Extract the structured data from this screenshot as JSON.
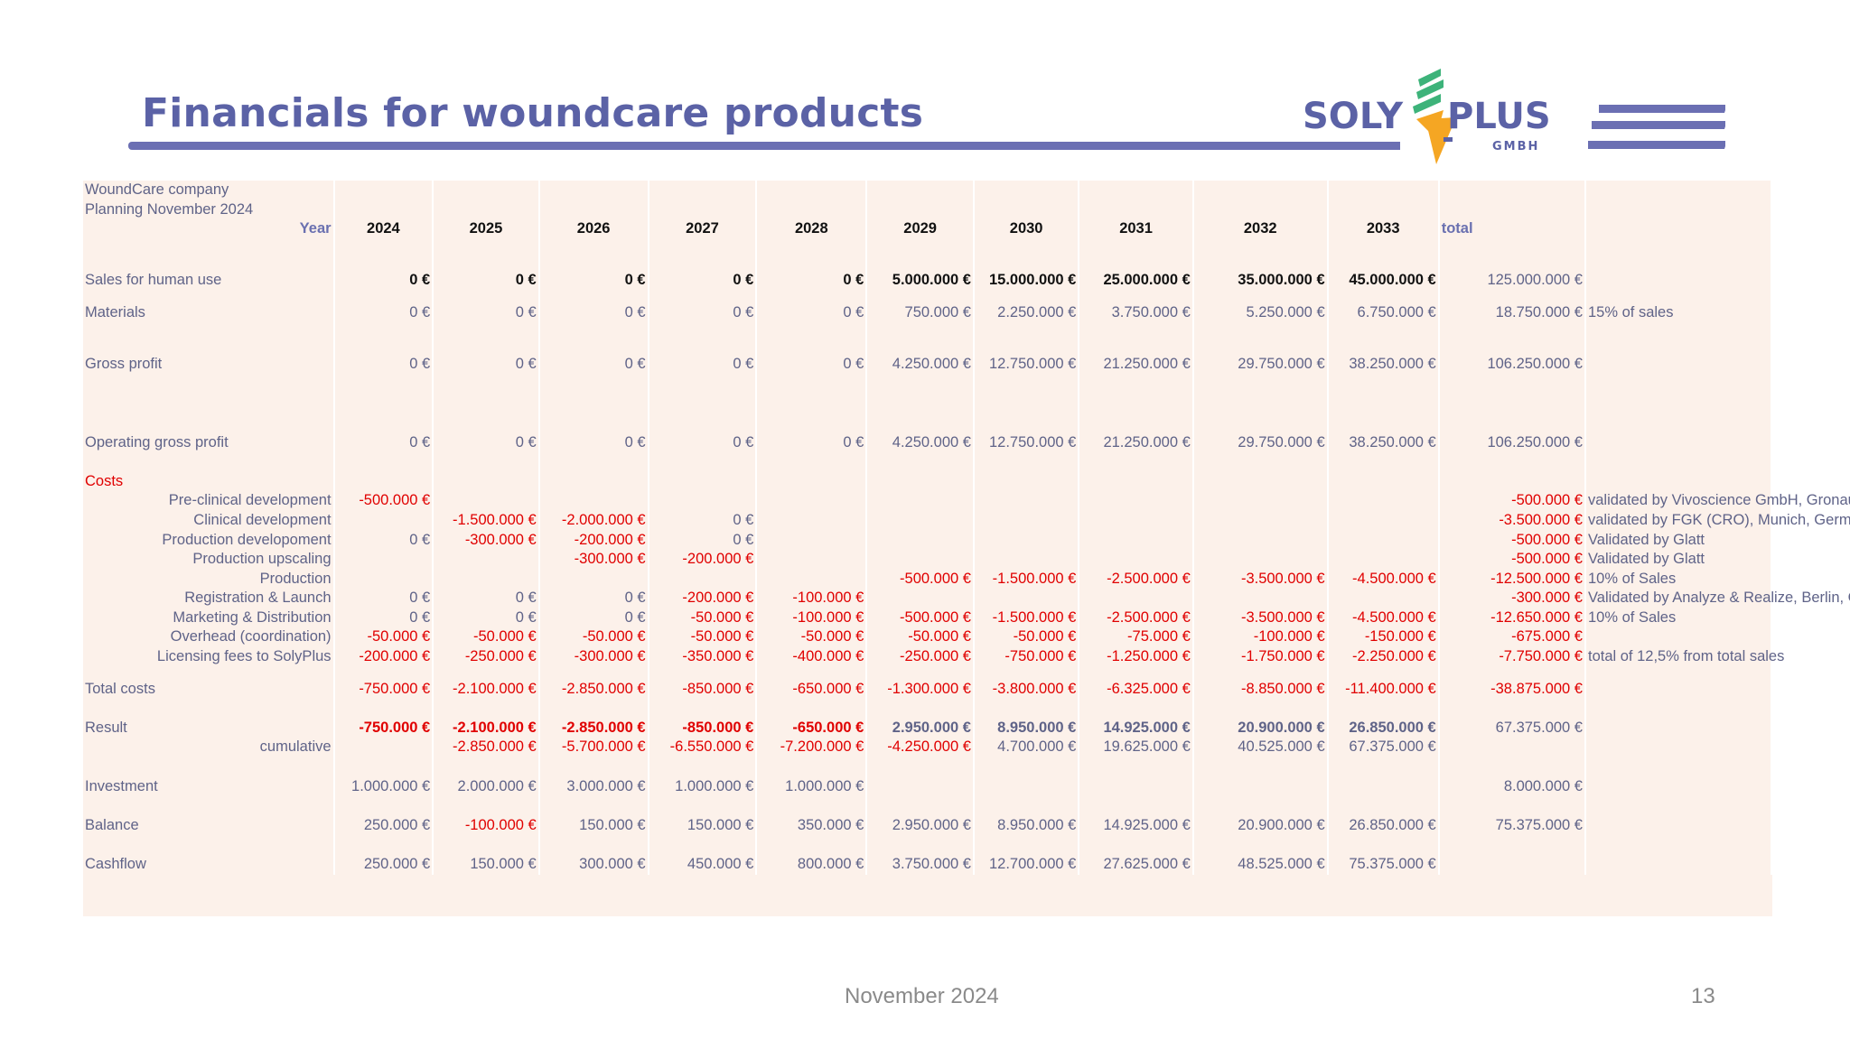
{
  "slide": {
    "title": "Financials for woundcare products",
    "footer_date": "November 2024",
    "page_number": "13"
  },
  "logo": {
    "left_text": "SOLY",
    "right_text": "PLUS",
    "sub_text": "GMBH",
    "colors": {
      "text": "#5b62a6",
      "green": "#3db37a",
      "orange": "#f5a623",
      "stripes": "#6b6fb3"
    }
  },
  "sheet": {
    "company": "WoundCare company",
    "planning": "Planning November 2024",
    "year_label": "Year",
    "years": [
      "2024",
      "2025",
      "2026",
      "2027",
      "2028",
      "2029",
      "2030",
      "2031",
      "2032",
      "2033"
    ],
    "total_label": "total",
    "rows": {
      "sales": {
        "label": "Sales for human use",
        "values": [
          "0 €",
          "0 €",
          "0 €",
          "0 €",
          "0 €",
          "5.000.000 €",
          "15.000.000 €",
          "25.000.000 €",
          "35.000.000 €",
          "45.000.000 €"
        ],
        "total": "125.000.000 €"
      },
      "materials": {
        "label": "Materials",
        "values": [
          "0 €",
          "0 €",
          "0 €",
          "0 €",
          "0 €",
          "750.000 €",
          "2.250.000 €",
          "3.750.000 €",
          "5.250.000 €",
          "6.750.000 €"
        ],
        "total": "18.750.000 €",
        "note": "15% of sales"
      },
      "gross": {
        "label": "Gross profit",
        "values": [
          "0 €",
          "0 €",
          "0 €",
          "0 €",
          "0 €",
          "4.250.000 €",
          "12.750.000 €",
          "21.250.000 €",
          "29.750.000 €",
          "38.250.000 €"
        ],
        "total": "106.250.000 €"
      },
      "opgross": {
        "label": "Operating gross profit",
        "values": [
          "0 €",
          "0 €",
          "0 €",
          "0 €",
          "0 €",
          "4.250.000 €",
          "12.750.000 €",
          "21.250.000 €",
          "29.750.000 €",
          "38.250.000 €"
        ],
        "total": "106.250.000 €"
      },
      "costs_label": "Costs",
      "preclin": {
        "label": "Pre-clinical development",
        "values": [
          "-500.000 €",
          "",
          "",
          "",
          "",
          "",
          "",
          "",
          "",
          ""
        ],
        "total": "-500.000 €",
        "note": "validated by Vivoscience GmbH, Gronau, Germany"
      },
      "clin": {
        "label": "Clinical development",
        "values": [
          "",
          "-1.500.000 €",
          "-2.000.000 €",
          "0 €",
          "",
          "",
          "",
          "",
          "",
          ""
        ],
        "total": "-3.500.000 €",
        "note": "validated by FGK (CRO), Munich, Germany"
      },
      "proddev": {
        "label": "Production developoment",
        "values": [
          "0 €",
          "-300.000 €",
          "-200.000 €",
          "0 €",
          "",
          "",
          "",
          "",
          "",
          ""
        ],
        "total": "-500.000 €",
        "note": "Validated  by Glatt"
      },
      "produp": {
        "label": "Production upscaling",
        "values": [
          "",
          "",
          "-300.000 €",
          "-200.000 €",
          "",
          "",
          "",
          "",
          "",
          ""
        ],
        "total": "-500.000 €",
        "note": "Validated  by Glatt"
      },
      "prod": {
        "label": "Production",
        "values": [
          "",
          "",
          "",
          "",
          "",
          "-500.000 €",
          "-1.500.000 €",
          "-2.500.000 €",
          "-3.500.000 €",
          "-4.500.000 €"
        ],
        "total": "-12.500.000 €",
        "note": "10% of Sales"
      },
      "reg": {
        "label": "Registration & Launch",
        "values": [
          "0 €",
          "0 €",
          "0 €",
          "-200.000 €",
          "-100.000 €",
          "",
          "",
          "",
          "",
          ""
        ],
        "total": "-300.000 €",
        "note": "Validated by Analyze & Realize, Berlin, Germany"
      },
      "mkt": {
        "label": "Marketing & Distribution",
        "values": [
          "0 €",
          "0 €",
          "0 €",
          "-50.000 €",
          "-100.000 €",
          "-500.000 €",
          "-1.500.000 €",
          "-2.500.000 €",
          "-3.500.000 €",
          "-4.500.000 €"
        ],
        "total": "-12.650.000 €",
        "note": "10% of Sales"
      },
      "overhead": {
        "label": "Overhead (coordination)",
        "values": [
          "-50.000 €",
          "-50.000 €",
          "-50.000 €",
          "-50.000 €",
          "-50.000 €",
          "-50.000 €",
          "-50.000 €",
          "-75.000 €",
          "-100.000 €",
          "-150.000 €"
        ],
        "total": "-675.000 €"
      },
      "lic": {
        "label": "Licensing fees to SolyPlus",
        "values": [
          "-200.000 €",
          "-250.000 €",
          "-300.000 €",
          "-350.000 €",
          "-400.000 €",
          "-250.000 €",
          "-750.000 €",
          "-1.250.000 €",
          "-1.750.000 €",
          "-2.250.000 €"
        ],
        "total": "-7.750.000 €",
        "note": "total of 12,5% from total sales"
      },
      "totalcosts": {
        "label": "Total costs",
        "values": [
          "-750.000 €",
          "-2.100.000 €",
          "-2.850.000 €",
          "-850.000 €",
          "-650.000 €",
          "-1.300.000 €",
          "-3.800.000 €",
          "-6.325.000 €",
          "-8.850.000 €",
          "-11.400.000 €"
        ],
        "total": "-38.875.000 €"
      },
      "result": {
        "label": "Result",
        "values": [
          "-750.000 €",
          "-2.100.000 €",
          "-2.850.000 €",
          "-850.000 €",
          "-650.000 €",
          "2.950.000 €",
          "8.950.000 €",
          "14.925.000 €",
          "20.900.000 €",
          "26.850.000 €"
        ],
        "total": "67.375.000 €"
      },
      "cumulative": {
        "label": "cumulative",
        "values": [
          "",
          "-2.850.000 €",
          "-5.700.000 €",
          "-6.550.000 €",
          "-7.200.000 €",
          "-4.250.000 €",
          "4.700.000 €",
          "19.625.000 €",
          "40.525.000 €",
          "67.375.000 €"
        ]
      },
      "investment": {
        "label": "Investment",
        "values": [
          "1.000.000 €",
          "2.000.000 €",
          "3.000.000 €",
          "1.000.000 €",
          "1.000.000 €",
          "",
          "",
          "",
          "",
          ""
        ],
        "total": "8.000.000 €"
      },
      "balance": {
        "label": "Balance",
        "values": [
          "250.000 €",
          "-100.000 €",
          "150.000 €",
          "150.000 €",
          "350.000 €",
          "2.950.000 €",
          "8.950.000 €",
          "14.925.000 €",
          "20.900.000 €",
          "26.850.000 €"
        ],
        "total": "75.375.000 €"
      },
      "cashflow": {
        "label": "Cashflow",
        "values": [
          "250.000 €",
          "150.000 €",
          "300.000 €",
          "450.000 €",
          "800.000 €",
          "3.750.000 €",
          "12.700.000 €",
          "27.625.000 €",
          "48.525.000 €",
          "75.375.000 €"
        ]
      }
    }
  }
}
